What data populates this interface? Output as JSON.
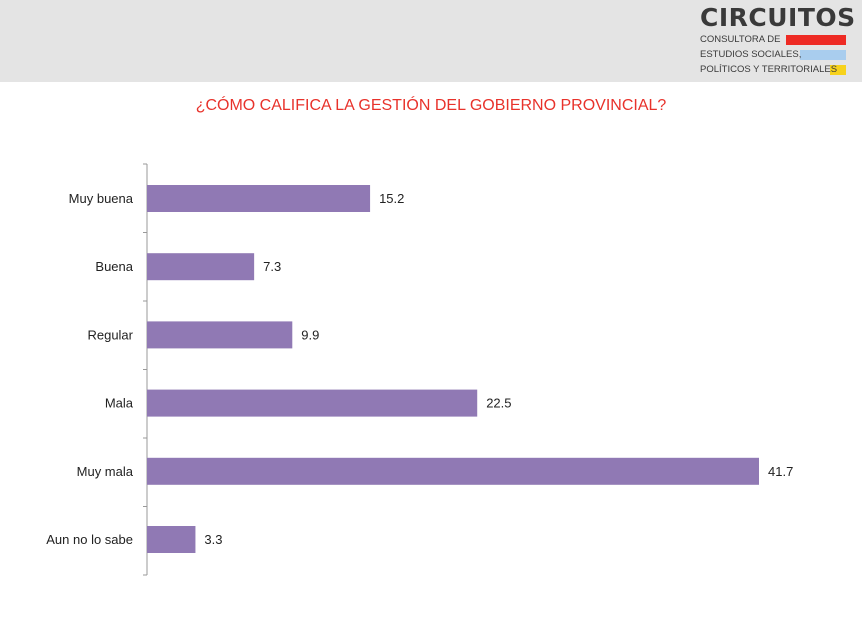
{
  "logo": {
    "name": "CIRCUITOS",
    "line1": "CONSULTORA DE",
    "line2": "ESTUDIOS SOCIALES,",
    "line3": "POLÍTICOS Y TERRITORIALES",
    "colors": [
      "#ee2b24",
      "#a9cdee",
      "#f7d21b"
    ]
  },
  "chart_data": {
    "type": "bar",
    "orientation": "horizontal",
    "title": "¿CÓMO CALIFICA LA GESTIÓN DEL GOBIERNO PROVINCIAL?",
    "categories": [
      "Muy buena",
      "Buena",
      "Regular",
      "Mala",
      "Muy mala",
      "Aun no lo sabe"
    ],
    "values": [
      15.2,
      7.3,
      9.9,
      22.5,
      41.7,
      3.3
    ],
    "xlim": [
      0,
      41.7
    ],
    "bar_color": "#9079b4",
    "title_color": "#e8322b",
    "grid": false,
    "legend": "none"
  }
}
